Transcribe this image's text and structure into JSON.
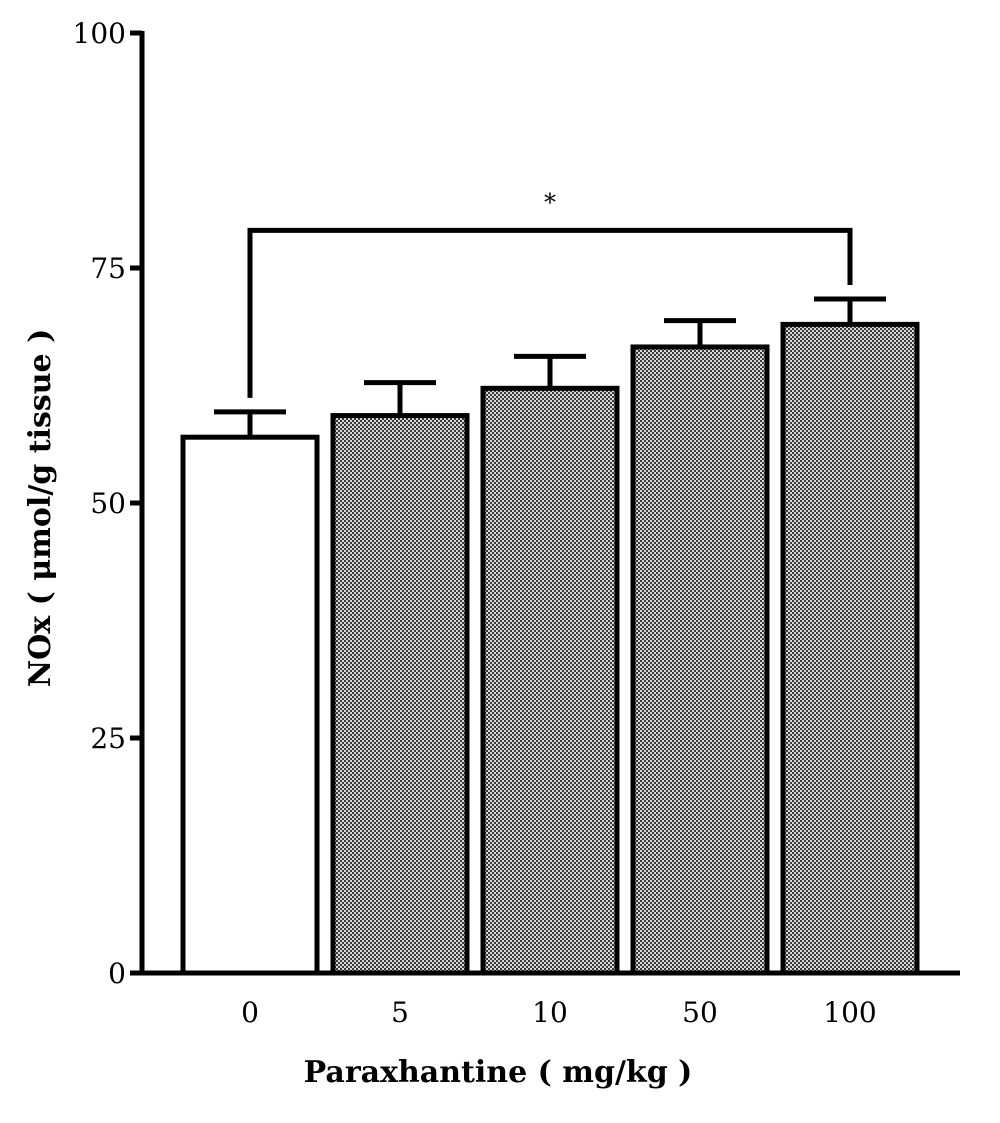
{
  "chart_data": {
    "type": "bar",
    "title": "",
    "xlabel": "Paraxhantine ( mg/kg )",
    "ylabel": "NOx ( μmol/g tissue )",
    "categories": [
      "0",
      "5",
      "10",
      "50",
      "100"
    ],
    "values": [
      57,
      59.3,
      62.2,
      66.6,
      69
    ],
    "errors": [
      2.7,
      3.5,
      3.4,
      2.8,
      2.7
    ],
    "fills": [
      "white",
      "checkered",
      "checkered",
      "checkered",
      "checkered"
    ],
    "ylim": [
      0,
      100
    ],
    "yticks": [
      0,
      25,
      50,
      75,
      100
    ],
    "ytick_labels": [
      "0",
      "25",
      "50",
      "75",
      "100"
    ],
    "grid": false,
    "significance": [
      {
        "from": 0,
        "to": 4,
        "label": "*",
        "level": 79
      }
    ]
  },
  "colors": {
    "bar_outline": "#000000",
    "hatch_dark": "#3a3a3a",
    "hatch_light": "#d8d8d8"
  }
}
